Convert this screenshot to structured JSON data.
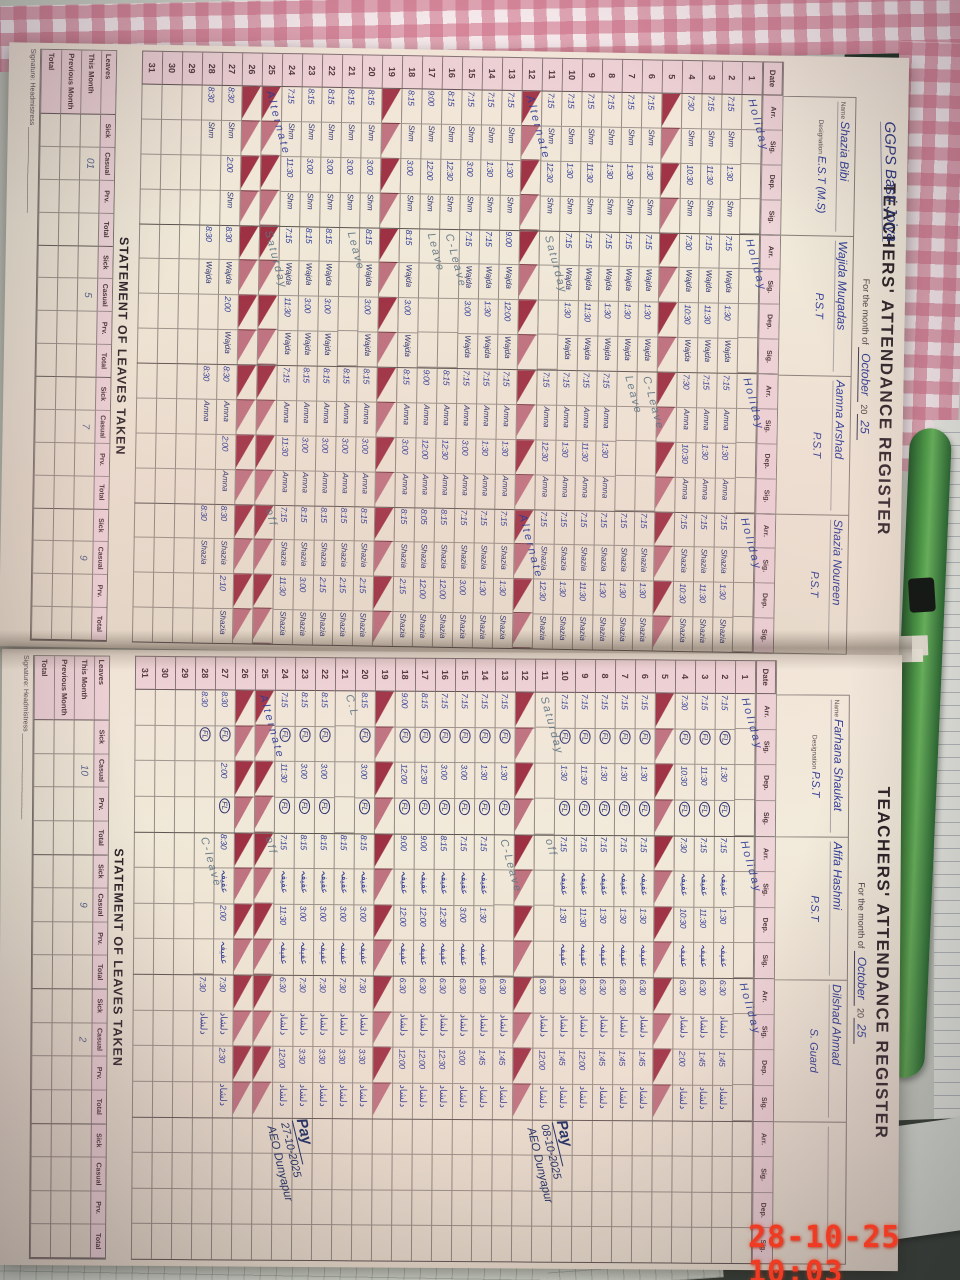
{
  "photo": {
    "timestamp": "28-10-25 10:03"
  },
  "colors": {
    "ink_blue": "#2d3b96",
    "ink_gray": "#5f7482",
    "triangle_red": "#9d3042",
    "header_pink": "#eed5d8",
    "timestamp_red": "#ef3b23"
  },
  "register": {
    "title": "TEACHERS' ATTENDANCE REGISTER",
    "month_label": "For the month of",
    "month": "October",
    "year_prefix": "20",
    "year": "25",
    "school": "GGPS Basti Joiya",
    "labels": {
      "date": "Date",
      "arr": "Arr.",
      "sig": "Sig.",
      "dep": "Dep.",
      "name": "Name",
      "designation": "Designation"
    },
    "statement": {
      "heading": "STATEMENT OF LEAVES TAKEN",
      "corner": "Leaves",
      "cols": [
        "Sick",
        "Casual",
        "Prv.",
        "Total"
      ],
      "rows": [
        "This Month",
        "Previous Month",
        "Total"
      ],
      "footer": "Signature: Headmistress ______________________"
    },
    "pages": [
      {
        "show_school": true,
        "leaves_this_month": [
          "01",
          "5",
          "7",
          "9"
        ],
        "notes": [],
        "teachers": [
          {
            "name": "Shazia Bibi",
            "designation": "E.S.T (M.S)",
            "sig": "Shm",
            "sig_style": "latin",
            "days": [
              "T*Holiday",
              "7:15|1:30",
              "7:15|11:30",
              "7:30|10:30",
              "S",
              "7:15|1:30",
              "7:15|1:30",
              "7:15|1:30",
              "7:15|11:30",
              "7:15|1:30",
              "7:15|12:30",
              "S*Alternate",
              "7:15|1:30",
              "7:15|1:30",
              "7:15|3:00",
              "8:15|12:30",
              "9:00|12:00",
              "8:15|3:00",
              "S",
              "8:15|3:00",
              "8:15|3:00",
              "8:15|3:00",
              "8:15|3:00",
              "7:15|11:30",
              "S*Alternate",
              "S",
              "8:30|2:00",
              "8:30|",
              "",
              "",
              ""
            ]
          },
          {
            "name": "Wajida Muqadas",
            "designation": "P.S.T",
            "sig": "Wajda",
            "sig_style": "latin",
            "days": [
              "T*Holiday",
              "7:15|1:30",
              "7:15|11:30",
              "7:30|10:30",
              "S",
              "7:15|1:30",
              "7:15|1:30",
              "7:15|1:30",
              "7:15|11:30",
              "7:15|1:30",
              "T*Saturday",
              "S",
              "9:00|12:00",
              "7:15|1:30",
              "7:15|3:00",
              "T*C-Leave",
              "T*Leave",
              "8:15|3:00",
              "S",
              "8:15|3:00",
              "T*Leave",
              "8:15|3:00",
              "8:15|3:00",
              "7:15|11:30",
              "S*Saturday",
              "S",
              "8:30|2:00",
              "8:30|",
              "",
              "",
              ""
            ]
          },
          {
            "name": "Aamna Arshad",
            "designation": "P.S.T",
            "sig": "Amna",
            "sig_style": "latin",
            "days": [
              "T*Holiday",
              "7:15|1:30",
              "7:15|1:30",
              "7:30|10:30",
              "S",
              "T*C-Leave",
              "T*Leave",
              "7:15|1:30",
              "7:15|11:30",
              "7:15|1:30",
              "7:15|12:30",
              "S",
              "7:15|1:30",
              "7:15|1:30",
              "7:15|3:00",
              "8:15|12:30",
              "9:00|12:00",
              "8:15|3:00",
              "S",
              "8:15|3:00",
              "8:15|3:00",
              "8:15|3:00",
              "8:15|3:00",
              "7:15|11:30",
              "S",
              "S",
              "8:30|2:00",
              "8:30|",
              "",
              "",
              ""
            ]
          },
          {
            "name": "Shazia Noureen",
            "designation": "P.S.T",
            "sig": "Shazia",
            "sig_style": "latin",
            "days": [
              "T*Holiday",
              "7:15|1:30",
              "7:15|11:30",
              "7:15|10:30",
              "S",
              "7:15|1:30",
              "7:15|1:30",
              "7:15|1:30",
              "7:15|11:30",
              "7:15|1:30",
              "7:15|12:30",
              "S*Alternate",
              "7:15|1:30",
              "7:15|1:30",
              "7:15|3:00",
              "8:15|12:00",
              "8:05|12:00",
              "8:15|2:15",
              "S",
              "8:15|2:15",
              "8:15|2:15",
              "8:15|2:15",
              "8:15|3:00",
              "7:15|11:30",
              "S*off",
              "S",
              "8:30|2:10",
              "8:30|",
              "",
              "",
              ""
            ]
          }
        ]
      },
      {
        "show_school": false,
        "leaves_this_month": [
          "10",
          "9",
          "2",
          ""
        ],
        "notes": [
          {
            "day": 9,
            "pay": "Pay",
            "date": "08-10-2025",
            "tag": "AEO Dunyapur"
          },
          {
            "day": 22,
            "pay": "Pay",
            "date": "27-10-2025",
            "tag": "AEO Dunyapur"
          }
        ],
        "teachers": [
          {
            "name": "Farhana Shaukat",
            "designation": "P.S.T",
            "sig": "FL",
            "sig_style": "circle",
            "days": [
              "T*Holiday",
              "7:15|1:30",
              "7:15|11:30",
              "7:30|10:30",
              "S",
              "7:15|1:30",
              "7:15|1:30",
              "7:15|1:30",
              "7:15|11:30",
              "7:15|1:30",
              "T*Saturday",
              "S",
              "7:15|1:30",
              "7:15|1:30",
              "7:15|3:00",
              "7:15|3:00",
              "8:15|12:30",
              "9:00|12:00",
              "S",
              "8:15|3:00",
              "T*C.L",
              "8:15|3:00",
              "8:15|3:00",
              "7:15|11:30",
              "S*Alternate",
              "S",
              "8:30|2:00",
              "8:30|",
              "",
              "",
              ""
            ]
          },
          {
            "name": "Afifa Hashmi",
            "designation": "P.S.T",
            "sig": "عفیفہ",
            "sig_style": "urdu",
            "days": [
              "T*Holiday",
              "7:15|1:30",
              "7:15|11:30",
              "7:30|10:30",
              "S",
              "7:15|1:30",
              "7:15|1:30",
              "7:15|1:30",
              "7:15|11:30",
              "7:15|1:30",
              "T*off",
              "S",
              "T*C-Leave",
              "7:15|1:30",
              "7:15|3:00",
              "8:15|12:30",
              "9:00|12:00",
              "9:00|12:00",
              "S",
              "8:15|3:00",
              "8:15|3:00",
              "8:15|3:00",
              "8:15|3:00",
              "7:15|11:30",
              "S*off",
              "S",
              "8:30|2:00",
              "T*C-leave",
              "",
              "",
              ""
            ]
          },
          {
            "name": "Dilshad Ahmad",
            "designation": "S. Guard",
            "sig": "دلشاد",
            "sig_style": "urdu",
            "days": [
              "T*Holiday",
              "6:30|1:45",
              "6:30|1:45",
              "6:30|2:00",
              "S",
              "6:30|1:45",
              "6:30|1:45",
              "6:30|1:45",
              "6:30|12:00",
              "6:30|1:45",
              "6:30|12:00",
              "S",
              "6:30|1:45",
              "6:30|1:45",
              "6:30|3:00",
              "6:30|12:30",
              "6:30|12:00",
              "6:30|12:00",
              "S",
              "7:30|3:30",
              "7:30|3:30",
              "7:30|3:30",
              "7:30|3:30",
              "6:30|12:00",
              "S",
              "S",
              "7:30|2:30",
              "7:30|",
              "",
              "",
              ""
            ]
          },
          {
            "name": "",
            "designation": "",
            "sig": "",
            "sig_style": "latin",
            "days": []
          }
        ]
      }
    ]
  }
}
